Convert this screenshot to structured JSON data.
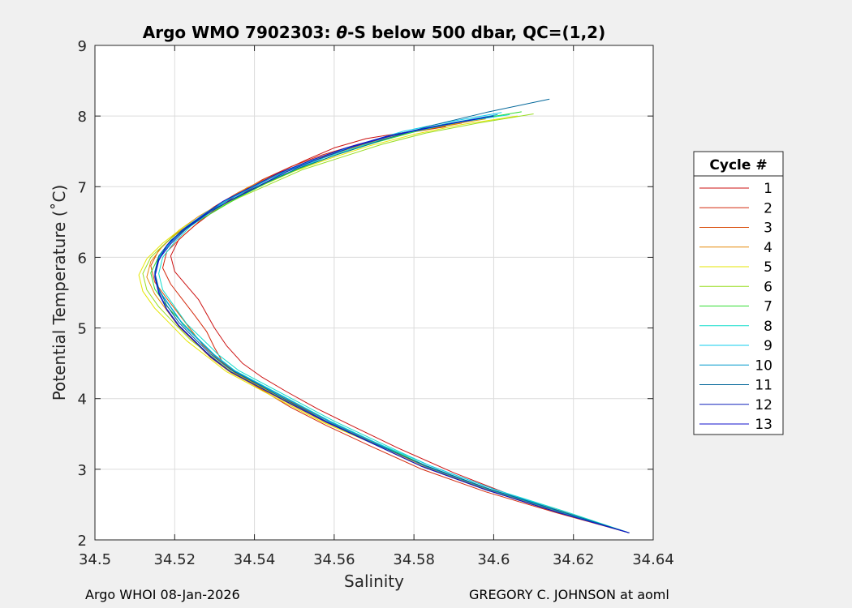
{
  "chart_data": {
    "type": "line",
    "title": "Argo WMO 7902303: θ-S below 500 dbar,  QC=(1,2)",
    "title_parts": {
      "prefix": "Argo WMO 7902303: ",
      "theta": "θ",
      "suffix": "-S below 500 dbar,  QC=(1,2)"
    },
    "xlabel": "Salinity",
    "ylabel": "Potential Temperature (˚C)",
    "xlim": [
      34.5,
      34.64
    ],
    "ylim": [
      2,
      9
    ],
    "xticks": [
      34.5,
      34.52,
      34.54,
      34.56,
      34.58,
      34.6,
      34.62,
      34.64
    ],
    "xtick_labels": [
      "34.5",
      "34.52",
      "34.54",
      "34.56",
      "34.58",
      "34.6",
      "34.62",
      "34.64"
    ],
    "yticks": [
      2,
      3,
      4,
      5,
      6,
      7,
      8,
      9
    ],
    "ytick_labels": [
      "2",
      "3",
      "4",
      "5",
      "6",
      "7",
      "8",
      "9"
    ],
    "grid": true,
    "legend": {
      "title": "Cycle #",
      "placement": "right outside"
    },
    "series": [
      {
        "name": "1",
        "color": "#cc1111",
        "x": [
          34.579,
          34.568,
          34.56,
          34.553,
          34.546,
          34.54,
          34.534,
          34.529,
          34.525,
          34.521,
          34.519,
          34.52,
          34.523,
          34.526,
          34.528,
          34.53,
          34.533,
          34.537,
          34.542,
          34.548,
          34.556,
          34.565,
          34.576,
          34.59,
          34.605,
          34.62,
          34.634
        ],
        "y": [
          7.78,
          7.68,
          7.55,
          7.38,
          7.2,
          7.0,
          6.8,
          6.62,
          6.45,
          6.25,
          6.02,
          5.8,
          5.6,
          5.4,
          5.2,
          5.0,
          4.75,
          4.5,
          4.3,
          4.1,
          3.85,
          3.6,
          3.3,
          2.95,
          2.62,
          2.35,
          2.1
        ]
      },
      {
        "name": "2",
        "color": "#d42a0e",
        "x": [
          34.588,
          34.576,
          34.566,
          34.557,
          34.549,
          34.542,
          34.536,
          34.531,
          34.526,
          34.522,
          34.518,
          34.517,
          34.519,
          34.522,
          34.525,
          34.528,
          34.53,
          34.532,
          34.536,
          34.542,
          34.549,
          34.558,
          34.569,
          34.582,
          34.598,
          34.616,
          34.634
        ],
        "y": [
          7.85,
          7.74,
          7.6,
          7.45,
          7.28,
          7.1,
          6.9,
          6.7,
          6.5,
          6.3,
          6.08,
          5.85,
          5.62,
          5.4,
          5.18,
          4.95,
          4.72,
          4.52,
          4.32,
          4.12,
          3.88,
          3.62,
          3.33,
          3.0,
          2.68,
          2.38,
          2.1
        ]
      },
      {
        "name": "3",
        "color": "#d94b08",
        "x": [
          34.592,
          34.58,
          34.57,
          34.56,
          34.551,
          34.543,
          34.536,
          34.53,
          34.525,
          34.52,
          34.516,
          34.514,
          34.515,
          34.518,
          34.521,
          34.524,
          34.527,
          34.531,
          34.536,
          34.543,
          34.551,
          34.56,
          34.571,
          34.584,
          34.6,
          34.617,
          34.634
        ],
        "y": [
          7.9,
          7.78,
          7.64,
          7.48,
          7.3,
          7.12,
          6.92,
          6.72,
          6.52,
          6.32,
          6.1,
          5.88,
          5.65,
          5.42,
          5.2,
          4.98,
          4.76,
          4.55,
          4.34,
          4.13,
          3.9,
          3.64,
          3.35,
          3.02,
          2.69,
          2.38,
          2.1
        ]
      },
      {
        "name": "4",
        "color": "#e58a0a",
        "x": [
          34.598,
          34.585,
          34.574,
          34.564,
          34.554,
          34.546,
          34.538,
          34.532,
          34.526,
          34.521,
          34.517,
          34.514,
          34.513,
          34.515,
          34.518,
          34.521,
          34.525,
          34.529,
          34.534,
          34.541,
          34.549,
          34.558,
          34.57,
          34.583,
          34.599,
          34.617,
          34.634
        ],
        "y": [
          7.96,
          7.84,
          7.7,
          7.54,
          7.36,
          7.18,
          6.98,
          6.78,
          6.58,
          6.38,
          6.16,
          5.94,
          5.72,
          5.48,
          5.25,
          5.02,
          4.8,
          4.58,
          4.37,
          4.16,
          3.92,
          3.66,
          3.37,
          3.03,
          2.7,
          2.39,
          2.1
        ]
      },
      {
        "name": "5",
        "color": "#e6e600",
        "x": [
          34.606,
          34.592,
          34.58,
          34.569,
          34.559,
          34.55,
          34.542,
          34.535,
          34.528,
          34.522,
          34.517,
          34.513,
          34.511,
          34.512,
          34.515,
          34.519,
          34.523,
          34.528,
          34.533,
          34.54,
          34.548,
          34.557,
          34.569,
          34.582,
          34.598,
          34.616,
          34.634
        ],
        "y": [
          8.0,
          7.88,
          7.74,
          7.58,
          7.4,
          7.22,
          7.02,
          6.82,
          6.62,
          6.42,
          6.2,
          5.98,
          5.75,
          5.52,
          5.28,
          5.05,
          4.82,
          4.6,
          4.38,
          4.17,
          3.93,
          3.67,
          3.38,
          3.04,
          2.71,
          2.39,
          2.1
        ]
      },
      {
        "name": "6",
        "color": "#99dd22",
        "x": [
          34.61,
          34.596,
          34.583,
          34.572,
          34.562,
          34.552,
          34.544,
          34.536,
          34.529,
          34.523,
          34.518,
          34.514,
          34.512,
          34.513,
          34.516,
          34.52,
          34.524,
          34.529,
          34.534,
          34.541,
          34.549,
          34.558,
          34.569,
          34.582,
          34.598,
          34.616,
          34.634
        ],
        "y": [
          8.03,
          7.9,
          7.76,
          7.6,
          7.42,
          7.24,
          7.04,
          6.84,
          6.64,
          6.44,
          6.22,
          6.0,
          5.77,
          5.54,
          5.3,
          5.06,
          4.83,
          4.61,
          4.39,
          4.18,
          3.94,
          3.67,
          3.38,
          3.04,
          2.71,
          2.39,
          2.1
        ]
      },
      {
        "name": "7",
        "color": "#33dd33",
        "x": [
          34.607,
          34.593,
          34.581,
          34.57,
          34.56,
          34.551,
          34.543,
          34.536,
          34.53,
          34.524,
          34.519,
          34.516,
          34.514,
          34.515,
          34.518,
          34.522,
          34.526,
          34.53,
          34.535,
          34.542,
          34.55,
          34.559,
          34.57,
          34.583,
          34.599,
          34.617,
          34.634
        ],
        "y": [
          8.06,
          7.93,
          7.79,
          7.62,
          7.44,
          7.25,
          7.05,
          6.85,
          6.65,
          6.45,
          6.23,
          6.01,
          5.78,
          5.55,
          5.31,
          5.07,
          4.84,
          4.62,
          4.4,
          4.19,
          3.95,
          3.68,
          3.39,
          3.05,
          2.72,
          2.4,
          2.1
        ]
      },
      {
        "name": "8",
        "color": "#11ddcc",
        "x": [
          34.604,
          34.59,
          34.578,
          34.568,
          34.558,
          34.55,
          34.542,
          34.535,
          34.529,
          34.524,
          34.52,
          34.517,
          34.516,
          34.517,
          34.52,
          34.523,
          34.527,
          34.531,
          34.536,
          34.543,
          34.551,
          34.56,
          34.571,
          34.584,
          34.6,
          34.618,
          34.634
        ],
        "y": [
          8.02,
          7.9,
          7.76,
          7.6,
          7.42,
          7.24,
          7.04,
          6.84,
          6.64,
          6.44,
          6.22,
          6.0,
          5.77,
          5.54,
          5.3,
          5.06,
          4.84,
          4.62,
          4.4,
          4.19,
          3.95,
          3.68,
          3.39,
          3.05,
          2.72,
          2.4,
          2.1
        ]
      },
      {
        "name": "9",
        "color": "#11ccee",
        "x": [
          34.602,
          34.589,
          34.577,
          34.567,
          34.557,
          34.549,
          34.541,
          34.534,
          34.528,
          34.523,
          34.519,
          34.516,
          34.515,
          34.516,
          34.519,
          34.522,
          34.526,
          34.53,
          34.535,
          34.542,
          34.55,
          34.559,
          34.57,
          34.584,
          34.6,
          34.617,
          34.634
        ],
        "y": [
          8.05,
          7.92,
          7.78,
          7.61,
          7.43,
          7.24,
          7.04,
          6.84,
          6.64,
          6.44,
          6.22,
          6.0,
          5.77,
          5.54,
          5.3,
          5.06,
          4.84,
          4.62,
          4.4,
          4.19,
          3.95,
          3.68,
          3.39,
          3.05,
          2.72,
          2.4,
          2.1
        ]
      },
      {
        "name": "10",
        "color": "#0099cc",
        "x": [
          34.601,
          34.588,
          34.576,
          34.566,
          34.557,
          34.548,
          34.541,
          34.534,
          34.528,
          34.523,
          34.519,
          34.516,
          34.515,
          34.516,
          34.519,
          34.522,
          34.526,
          34.53,
          34.535,
          34.542,
          34.55,
          34.559,
          34.57,
          34.583,
          34.599,
          34.617,
          34.634
        ],
        "y": [
          8.02,
          7.89,
          7.75,
          7.59,
          7.41,
          7.23,
          7.03,
          6.83,
          6.63,
          6.43,
          6.21,
          5.99,
          5.76,
          5.53,
          5.29,
          5.05,
          4.83,
          4.61,
          4.39,
          4.18,
          3.94,
          3.67,
          3.38,
          3.04,
          2.71,
          2.39,
          2.1
        ]
      },
      {
        "name": "11",
        "color": "#006699",
        "x": [
          34.614,
          34.598,
          34.584,
          34.572,
          34.561,
          34.551,
          34.543,
          34.536,
          34.529,
          34.524,
          34.519,
          34.516,
          34.515,
          34.516,
          34.518,
          34.521,
          34.525,
          34.529,
          34.534,
          34.541,
          34.549,
          34.558,
          34.569,
          34.583,
          34.599,
          34.617,
          34.634
        ],
        "y": [
          8.24,
          8.05,
          7.86,
          7.66,
          7.46,
          7.26,
          7.06,
          6.86,
          6.66,
          6.46,
          6.24,
          6.02,
          5.79,
          5.56,
          5.32,
          5.08,
          4.85,
          4.63,
          4.41,
          4.2,
          3.95,
          3.68,
          3.39,
          3.05,
          2.72,
          2.4,
          2.1
        ]
      },
      {
        "name": "12",
        "color": "#1122bb",
        "x": [
          34.6,
          34.587,
          34.575,
          34.565,
          34.556,
          34.548,
          34.541,
          34.534,
          34.528,
          34.523,
          34.519,
          34.516,
          34.515,
          34.516,
          34.518,
          34.521,
          34.525,
          34.529,
          34.534,
          34.541,
          34.549,
          34.558,
          34.569,
          34.582,
          34.598,
          34.616,
          34.634
        ],
        "y": [
          8.0,
          7.87,
          7.73,
          7.57,
          7.39,
          7.21,
          7.01,
          6.81,
          6.61,
          6.41,
          6.19,
          5.97,
          5.74,
          5.51,
          5.27,
          5.04,
          4.82,
          4.6,
          4.38,
          4.17,
          3.93,
          3.67,
          3.38,
          3.04,
          2.71,
          2.39,
          2.1
        ]
      },
      {
        "name": "13",
        "color": "#1111cc",
        "x": [
          34.598,
          34.585,
          34.573,
          34.563,
          34.554,
          34.546,
          34.539,
          34.532,
          34.527,
          34.522,
          34.518,
          34.516,
          34.515,
          34.516,
          34.518,
          34.521,
          34.525,
          34.529,
          34.534,
          34.541,
          34.549,
          34.558,
          34.569,
          34.582,
          34.598,
          34.616,
          34.634
        ],
        "y": [
          7.98,
          7.85,
          7.71,
          7.55,
          7.37,
          7.19,
          6.99,
          6.79,
          6.59,
          6.39,
          6.17,
          5.95,
          5.72,
          5.49,
          5.26,
          5.03,
          4.81,
          4.59,
          4.38,
          4.17,
          3.93,
          3.67,
          3.38,
          3.04,
          2.71,
          2.39,
          2.1
        ]
      }
    ]
  },
  "footer": {
    "left": "Argo WHOI 08-Jan-2026",
    "right": "GREGORY C. JOHNSON at aoml"
  }
}
